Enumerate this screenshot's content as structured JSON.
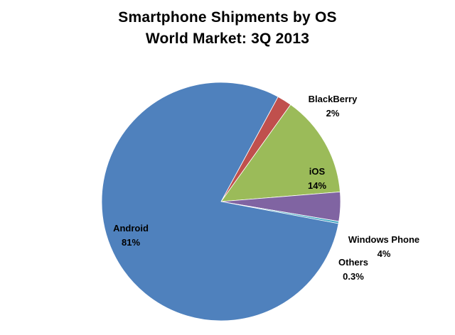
{
  "chart_data": {
    "type": "pie",
    "title": "Smartphone Shipments by OS",
    "subtitle": "World Market: 3Q 2013",
    "slices": [
      {
        "name": "Android",
        "value": 81,
        "label": "81%",
        "color": "#4f81bd"
      },
      {
        "name": "BlackBerry",
        "value": 2,
        "label": "2%",
        "color": "#c0504d"
      },
      {
        "name": "iOS",
        "value": 14,
        "label": "14%",
        "color": "#9bbb59"
      },
      {
        "name": "Windows Phone",
        "value": 4,
        "label": "4%",
        "color": "#8064a2"
      },
      {
        "name": "Others",
        "value": 0.3,
        "label": "0.3%",
        "color": "#4bacc6"
      }
    ],
    "legend": "none",
    "label_position": "outside/inside mixed"
  }
}
